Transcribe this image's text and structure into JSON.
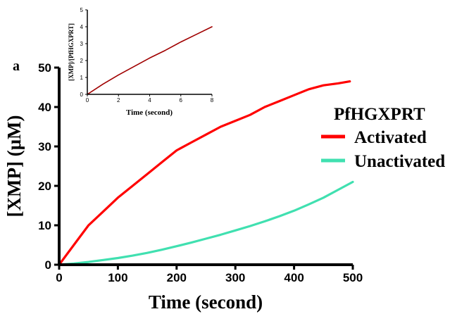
{
  "panel_label": "a",
  "colors": {
    "activated": "#ff0000",
    "unactivated": "#40e0b0",
    "inset_line": "#a00000",
    "axis": "#000000"
  },
  "chart_data": [
    {
      "name": "main",
      "type": "line",
      "xlabel": "Time (second)",
      "ylabel": "[XMP] (μM)",
      "xlim": [
        0,
        500
      ],
      "ylim": [
        0,
        50
      ],
      "xticks": [
        0,
        100,
        200,
        300,
        400,
        500
      ],
      "yticks": [
        0,
        10,
        20,
        30,
        40,
        50
      ],
      "grid": false,
      "legend": {
        "title": "PfHGXPRT",
        "position": "right"
      },
      "series": [
        {
          "name": "Activated",
          "color": "#ff0000",
          "x": [
            0,
            25,
            50,
            75,
            100,
            125,
            150,
            175,
            200,
            225,
            250,
            275,
            300,
            325,
            350,
            375,
            400,
            425,
            450,
            475,
            495
          ],
          "y": [
            0,
            5,
            10,
            13.5,
            17,
            20,
            23,
            26,
            29,
            31,
            33,
            35,
            36.5,
            38,
            40,
            41.5,
            43,
            44.5,
            45.5,
            46,
            46.5
          ]
        },
        {
          "name": "Unactivated",
          "color": "#40e0b0",
          "x": [
            0,
            25,
            50,
            75,
            100,
            125,
            150,
            175,
            200,
            225,
            250,
            275,
            300,
            325,
            350,
            375,
            400,
            425,
            450,
            475,
            500
          ],
          "y": [
            0,
            0.3,
            0.7,
            1.2,
            1.7,
            2.3,
            3,
            3.8,
            4.7,
            5.6,
            6.6,
            7.6,
            8.7,
            9.8,
            11,
            12.3,
            13.7,
            15.3,
            17,
            19,
            21
          ]
        }
      ]
    },
    {
      "name": "inset",
      "type": "line",
      "xlabel": "Time (second)",
      "ylabel": "[XMP]/[PfHGXPRT]",
      "xlim": [
        0,
        8
      ],
      "ylim": [
        0,
        5
      ],
      "xticks": [
        0,
        2,
        4,
        6,
        8
      ],
      "yticks": [
        0,
        1,
        2,
        3,
        4,
        5
      ],
      "grid": false,
      "series": [
        {
          "color": "#a00000",
          "x": [
            0,
            1,
            2,
            3,
            4,
            5,
            6,
            7,
            8
          ],
          "y": [
            0,
            0.6,
            1.15,
            1.65,
            2.15,
            2.6,
            3.1,
            3.55,
            4.0
          ]
        }
      ]
    }
  ]
}
